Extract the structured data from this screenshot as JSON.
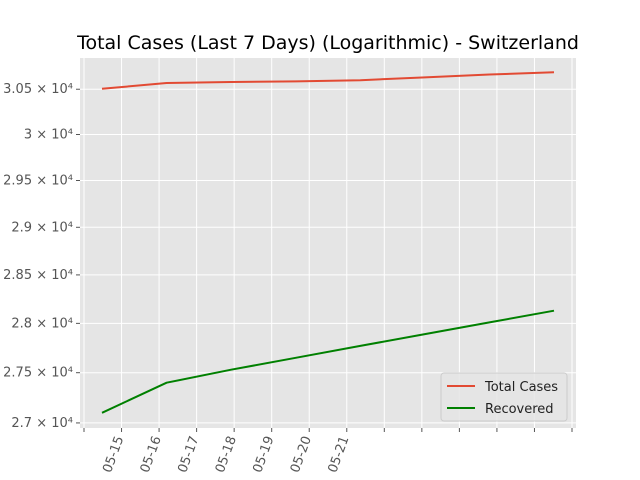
{
  "chart_data": {
    "type": "line",
    "title": "Total Cases (Last 7 Days) (Logarithmic) - Switzerland",
    "xlabel": "",
    "ylabel": "",
    "y_scale": "log",
    "grid": true,
    "legend_position": "lower-right",
    "x_tick_labels": [
      "05-15",
      "05-16",
      "05-17",
      "05-18",
      "05-19",
      "05-20",
      "05-21"
    ],
    "y_ticks": [
      {
        "value": 27000,
        "label": "2.7 × 10⁴"
      },
      {
        "value": 27500,
        "label": "2.75 × 10⁴"
      },
      {
        "value": 28000,
        "label": "2.8 × 10⁴"
      },
      {
        "value": 28500,
        "label": "2.85 × 10⁴"
      },
      {
        "value": 29000,
        "label": "2.9 × 10⁴"
      },
      {
        "value": 29500,
        "label": "2.95 × 10⁴"
      },
      {
        "value": 30000,
        "label": "3 × 10⁴"
      },
      {
        "value": 30500,
        "label": "3.05 × 10⁴"
      }
    ],
    "ylim": [
      26950,
      30850
    ],
    "series": [
      {
        "name": "Total Cases",
        "color": "#e24a33",
        "values": [
          30505,
          30570,
          30581,
          30587,
          30601,
          30632,
          30665,
          30689
        ]
      },
      {
        "name": "Recovered",
        "color": "#008000",
        "values": [
          27100,
          27400,
          27530,
          27650,
          27770,
          27890,
          28010,
          28130
        ]
      }
    ]
  }
}
